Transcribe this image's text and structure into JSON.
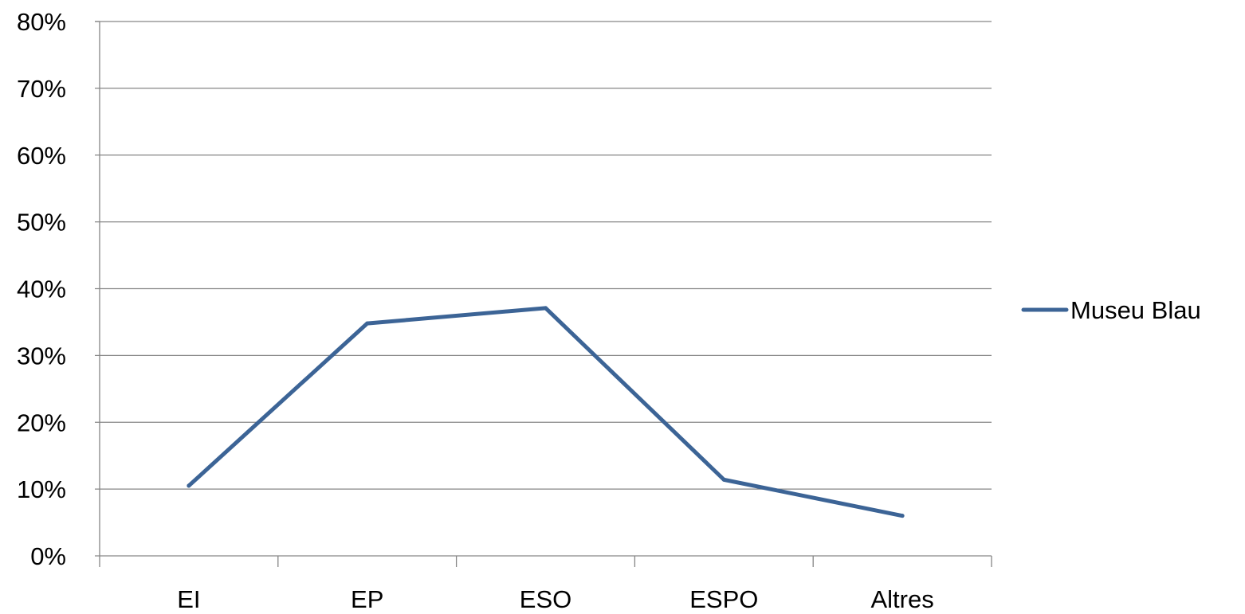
{
  "chart_data": {
    "type": "line",
    "categories": [
      "EI",
      "EP",
      "ESO",
      "ESPO",
      "Altres"
    ],
    "series": [
      {
        "name": "Museu Blau",
        "color": "#3c6496",
        "values": [
          10.5,
          34.8,
          37.1,
          11.4,
          6.0
        ]
      }
    ],
    "y_ticks": [
      "0%",
      "10%",
      "20%",
      "30%",
      "40%",
      "50%",
      "60%",
      "70%",
      "80%"
    ],
    "ylim": [
      0,
      80
    ],
    "y_unit": "%",
    "grid": true,
    "legend_position": "right",
    "title": "",
    "xlabel": "",
    "ylabel": ""
  }
}
